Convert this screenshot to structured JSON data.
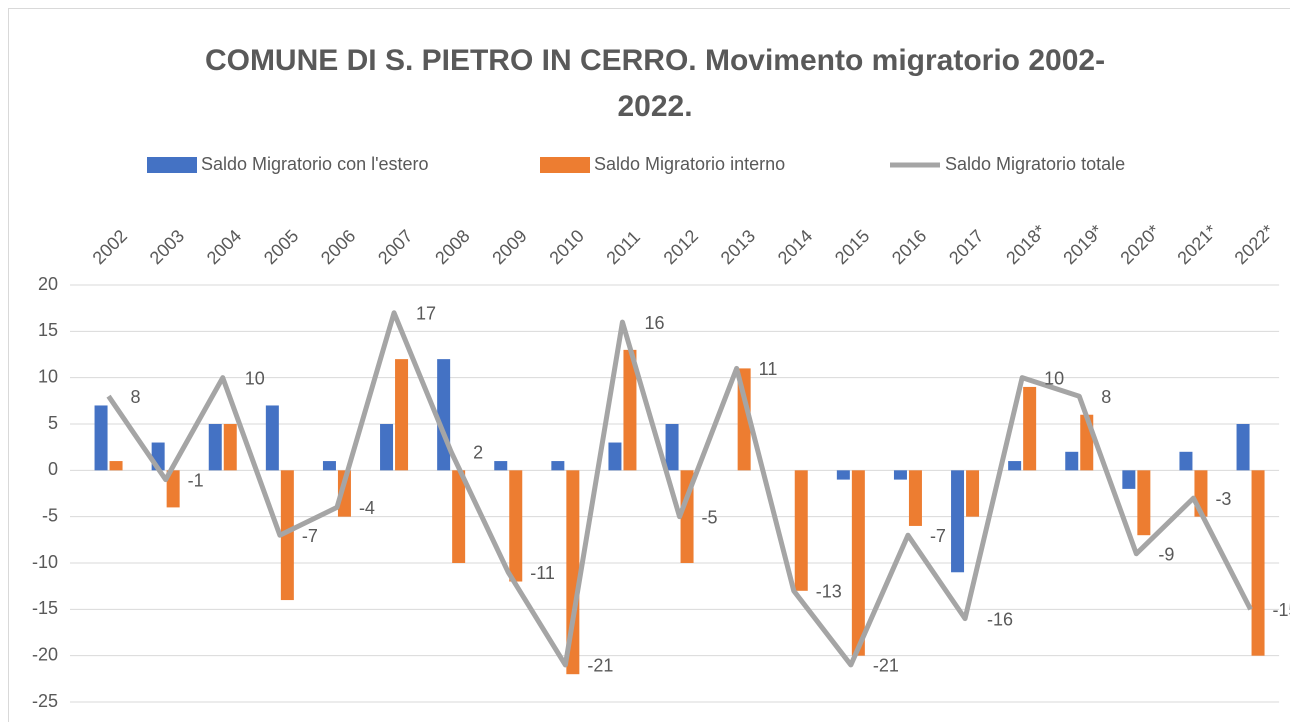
{
  "chart_data": {
    "type": "bar",
    "title": "COMUNE DI S. PIETRO IN CERRO. Movimento migratorio 2002-2022.",
    "categories": [
      "2002",
      "2003",
      "2004",
      "2005",
      "2006",
      "2007",
      "2008",
      "2009",
      "2010",
      "2011",
      "2012",
      "2013",
      "2014",
      "2015",
      "2016",
      "2017",
      "2018*",
      "2019*",
      "2020*",
      "2021*",
      "2022*"
    ],
    "series": [
      {
        "name": "Saldo Migratorio con l'estero",
        "type": "bar",
        "color": "#4472c4",
        "values": [
          7,
          3,
          5,
          7,
          1,
          5,
          12,
          1,
          1,
          3,
          5,
          0,
          0,
          -1,
          -1,
          -11,
          1,
          2,
          -2,
          2,
          5
        ]
      },
      {
        "name": "Saldo Migratorio interno",
        "type": "bar",
        "color": "#ed7d31",
        "values": [
          1,
          -4,
          5,
          -14,
          -5,
          12,
          -10,
          -12,
          -22,
          13,
          -10,
          11,
          -13,
          -20,
          -6,
          -5,
          9,
          6,
          -7,
          -5,
          -20
        ]
      },
      {
        "name": "Saldo Migratorio totale",
        "type": "line",
        "color": "#a5a5a5",
        "values": [
          8,
          -1,
          10,
          -7,
          -4,
          17,
          2,
          -11,
          -21,
          16,
          -5,
          11,
          -13,
          -21,
          -7,
          -16,
          10,
          8,
          -9,
          -3,
          -15
        ]
      }
    ],
    "ylim": [
      -25,
      20
    ],
    "yticks": [
      -25,
      -20,
      -15,
      -10,
      -5,
      0,
      5,
      10,
      15,
      20
    ],
    "grid": true,
    "legend": "top"
  }
}
